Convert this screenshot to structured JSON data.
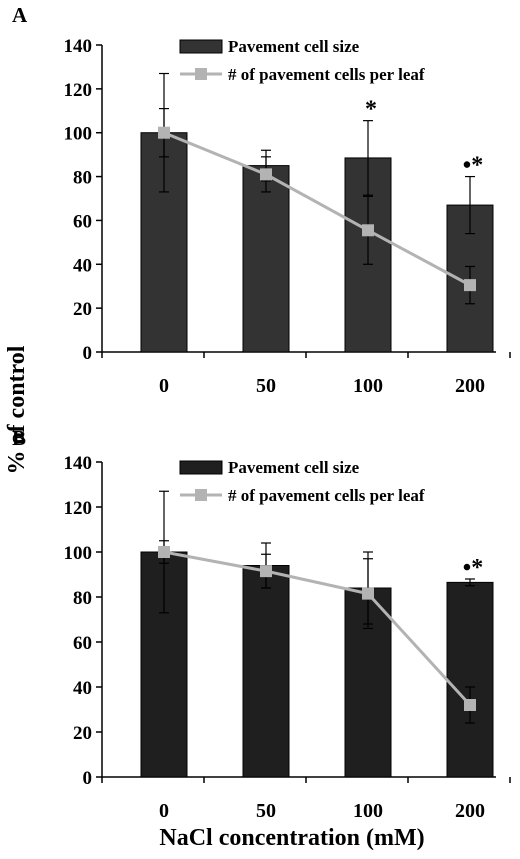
{
  "figure": {
    "ylabel": "% of control",
    "xlabel": "NaCl concentration (mM)"
  },
  "chart_data": [
    {
      "type": "bar",
      "panel_label": "A",
      "categories": [
        "0",
        "50",
        "100",
        "200"
      ],
      "ylim": [
        0,
        140
      ],
      "yticks": [
        0,
        20,
        40,
        60,
        80,
        100,
        120,
        140
      ],
      "legend_position": "top-center",
      "series": [
        {
          "name": "Pavement cell size",
          "kind": "bar",
          "color": "#333333",
          "values": [
            100,
            85,
            88.5,
            67
          ],
          "errors": [
            27,
            7,
            17,
            13
          ],
          "markers": [
            "",
            "",
            "*",
            "•*"
          ]
        },
        {
          "name": "# of pavement cells per leaf",
          "kind": "line",
          "color": "#b3b3b3",
          "values": [
            100,
            81,
            55.5,
            30.5
          ],
          "errors": [
            11,
            8,
            15.5,
            8.5
          ]
        }
      ]
    },
    {
      "type": "bar",
      "panel_label": "B",
      "categories": [
        "0",
        "50",
        "100",
        "200"
      ],
      "ylim": [
        0,
        140
      ],
      "yticks": [
        0,
        20,
        40,
        60,
        80,
        100,
        120,
        140
      ],
      "legend_position": "top-center",
      "series": [
        {
          "name": "Pavement cell size",
          "kind": "bar",
          "color": "#1f1f1f",
          "values": [
            100,
            94,
            84,
            86.5
          ],
          "errors": [
            27,
            10,
            16,
            1.5
          ],
          "markers": [
            "",
            "",
            "",
            "•*"
          ]
        },
        {
          "name": "# of pavement cells per leaf",
          "kind": "line",
          "color": "#b3b3b3",
          "values": [
            100,
            91.5,
            81.5,
            32
          ],
          "errors": [
            5,
            7.5,
            15.5,
            8
          ]
        }
      ]
    }
  ]
}
